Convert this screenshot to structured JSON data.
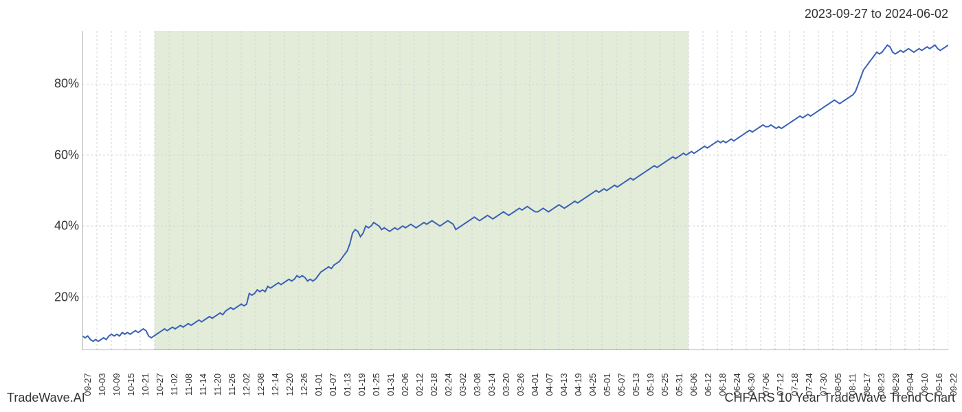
{
  "header": {
    "date_range": "2023-09-27 to 2024-06-02"
  },
  "footer": {
    "left": "TradeWave.AI",
    "right": "CHFARS 10 Year TradeWave Trend Chart"
  },
  "chart": {
    "type": "line",
    "background_color": "#ffffff",
    "shaded_region_color": "#e2ecd9",
    "shaded_region_start_index": 5,
    "shaded_region_end_index": 42,
    "line_color": "#3a61b5",
    "line_width": 2,
    "grid_color": "#d3d3d3",
    "grid_dash": "3,3",
    "axis_color": "#666666",
    "ylim": [
      5,
      95
    ],
    "y_ticks": [
      20,
      40,
      60,
      80
    ],
    "y_tick_labels": [
      "20%",
      "40%",
      "60%",
      "80%"
    ],
    "x_labels": [
      "09-27",
      "10-03",
      "10-09",
      "10-15",
      "10-21",
      "10-27",
      "11-02",
      "11-08",
      "11-14",
      "11-20",
      "11-26",
      "12-02",
      "12-08",
      "12-14",
      "12-20",
      "12-26",
      "01-01",
      "01-07",
      "01-13",
      "01-19",
      "01-25",
      "01-31",
      "02-06",
      "02-12",
      "02-18",
      "02-24",
      "03-02",
      "03-08",
      "03-14",
      "03-20",
      "03-26",
      "04-01",
      "04-07",
      "04-13",
      "04-19",
      "04-25",
      "05-01",
      "05-07",
      "05-13",
      "05-19",
      "05-25",
      "05-31",
      "06-06",
      "06-12",
      "06-18",
      "06-24",
      "06-30",
      "07-06",
      "07-12",
      "07-18",
      "07-24",
      "07-30",
      "08-05",
      "08-11",
      "08-17",
      "08-23",
      "08-29",
      "09-04",
      "09-10",
      "09-16",
      "09-22"
    ],
    "series": [
      9,
      8.5,
      9,
      8,
      7.5,
      8,
      7.5,
      8,
      8.5,
      8,
      9,
      9.5,
      9,
      9.5,
      9,
      10,
      9.5,
      10,
      9.5,
      10,
      10.5,
      10,
      10.5,
      11,
      10.5,
      9,
      8.5,
      9,
      9.5,
      10,
      10.5,
      11,
      10.5,
      11,
      11.5,
      11,
      11.5,
      12,
      11.5,
      12,
      12.5,
      12,
      12.5,
      13,
      13.5,
      13,
      13.5,
      14,
      14.5,
      14,
      14.5,
      15,
      15.5,
      15,
      16,
      16.5,
      17,
      16.5,
      17,
      17.5,
      18,
      17.5,
      18,
      21,
      20.5,
      21,
      22,
      21.5,
      22,
      21.5,
      23,
      22.5,
      23,
      23.5,
      24,
      23.5,
      24,
      24.5,
      25,
      24.5,
      25,
      26,
      25.5,
      26,
      25.5,
      24.5,
      25,
      24.5,
      25,
      26,
      27,
      27.5,
      28,
      28.5,
      28,
      29,
      29.5,
      30,
      31,
      32,
      33,
      35,
      38,
      39,
      38.5,
      37,
      38,
      40,
      39.5,
      40,
      41,
      40.5,
      40,
      39,
      39.5,
      39,
      38.5,
      39,
      39.5,
      39,
      39.5,
      40,
      39.5,
      40,
      40.5,
      40,
      39.5,
      40,
      40.5,
      41,
      40.5,
      41,
      41.5,
      41,
      40.5,
      40,
      40.5,
      41,
      41.5,
      41,
      40.5,
      39,
      39.5,
      40,
      40.5,
      41,
      41.5,
      42,
      42.5,
      42,
      41.5,
      42,
      42.5,
      43,
      42.5,
      42,
      42.5,
      43,
      43.5,
      44,
      43.5,
      43,
      43.5,
      44,
      44.5,
      45,
      44.5,
      45,
      45.5,
      45,
      44.5,
      44,
      44,
      44.5,
      45,
      44.5,
      44,
      44.5,
      45,
      45.5,
      46,
      45.5,
      45,
      45.5,
      46,
      46.5,
      47,
      46.5,
      47,
      47.5,
      48,
      48.5,
      49,
      49.5,
      50,
      49.5,
      50,
      50.5,
      50,
      50.5,
      51,
      51.5,
      51,
      51.5,
      52,
      52.5,
      53,
      53.5,
      53,
      53.5,
      54,
      54.5,
      55,
      55.5,
      56,
      56.5,
      57,
      56.5,
      57,
      57.5,
      58,
      58.5,
      59,
      59.5,
      59,
      59.5,
      60,
      60.5,
      60,
      60.5,
      61,
      60.5,
      61,
      61.5,
      62,
      62.5,
      62,
      62.5,
      63,
      63.5,
      64,
      63.5,
      64,
      63.5,
      64,
      64.5,
      64,
      64.5,
      65,
      65.5,
      66,
      66.5,
      67,
      66.5,
      67,
      67.5,
      68,
      68.5,
      68,
      68,
      68.5,
      68,
      67.5,
      68,
      67.5,
      68,
      68.5,
      69,
      69.5,
      70,
      70.5,
      71,
      70.5,
      71,
      71.5,
      71,
      71.5,
      72,
      72.5,
      73,
      73.5,
      74,
      74.5,
      75,
      75.5,
      75,
      74.5,
      75,
      75.5,
      76,
      76.5,
      77,
      78,
      80,
      82,
      84,
      85,
      86,
      87,
      88,
      89,
      88.5,
      89,
      90,
      91,
      90.5,
      89,
      88.5,
      89,
      89.5,
      89,
      89.5,
      90,
      89.5,
      89,
      89.5,
      90,
      89.5,
      90,
      90.5,
      90,
      90.5,
      91,
      90,
      89.5,
      90,
      90.5,
      91
    ],
    "label_fontsize": 18,
    "x_label_fontsize": 13
  }
}
